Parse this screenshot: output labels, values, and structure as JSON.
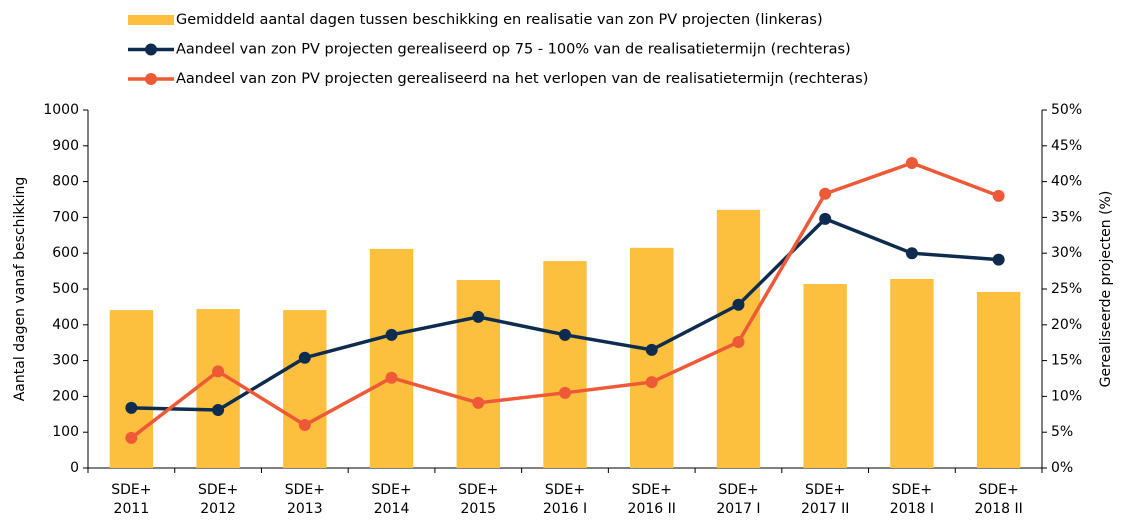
{
  "chart_data": {
    "type": "combo",
    "categories": [
      [
        "SDE+",
        "2011"
      ],
      [
        "SDE+",
        "2012"
      ],
      [
        "SDE+",
        "2013"
      ],
      [
        "SDE+",
        "2014"
      ],
      [
        "SDE+",
        "2015"
      ],
      [
        "SDE+",
        "2016 I"
      ],
      [
        "SDE+",
        "2016 II"
      ],
      [
        "SDE+",
        "2017 I"
      ],
      [
        "SDE+",
        "2017 II"
      ],
      [
        "SDE+",
        "2018 I"
      ],
      [
        "SDE+",
        "2018 II"
      ]
    ],
    "series": [
      {
        "name": "Gemiddeld aantal dagen tussen beschikking en realisatie van zon PV projecten (linkeras)",
        "type": "bar",
        "color": "#fcbf3e",
        "values": [
          441,
          444,
          441,
          612,
          525,
          578,
          615,
          721,
          514,
          528,
          492
        ]
      },
      {
        "name": "Aandeel van zon PV projecten gerealiseerd op 75 - 100% van de realisatietermijn (rechteras)",
        "type": "line",
        "axis": "y2",
        "color": "#0d2c4f",
        "values": [
          8.4,
          8.1,
          15.4,
          18.6,
          21.1,
          18.6,
          16.5,
          22.8,
          34.8,
          30.0,
          29.1
        ]
      },
      {
        "name": "Aandeel van zon PV projecten gerealiseerd na het verlopen van de realisatietermijn (rechteras)",
        "type": "line",
        "axis": "y2",
        "color": "#ee5a37",
        "values": [
          4.2,
          13.5,
          6.0,
          12.6,
          9.1,
          10.5,
          12.0,
          17.6,
          38.3,
          42.6,
          38.0
        ]
      }
    ],
    "ylabel": "Aantal dagen vanaf beschikking",
    "y2label": "Gerealiseerde projecten (%)",
    "ylim": [
      0,
      1000
    ],
    "yticks": [
      0,
      100,
      200,
      300,
      400,
      500,
      600,
      700,
      800,
      900,
      1000
    ],
    "y2lim": [
      0,
      50
    ],
    "y2ticks": [
      {
        "value": 0,
        "label": "0%"
      },
      {
        "value": 5,
        "label": "5%"
      },
      {
        "value": 10,
        "label": "10%"
      },
      {
        "value": 15,
        "label": "15%"
      },
      {
        "value": 20,
        "label": "20%"
      },
      {
        "value": 25,
        "label": "25%"
      },
      {
        "value": 30,
        "label": "30%"
      },
      {
        "value": 35,
        "label": "35%"
      },
      {
        "value": 40,
        "label": "40%"
      },
      {
        "value": 45,
        "label": "45%"
      },
      {
        "value": 50,
        "label": "50%"
      }
    ],
    "grid": false
  }
}
